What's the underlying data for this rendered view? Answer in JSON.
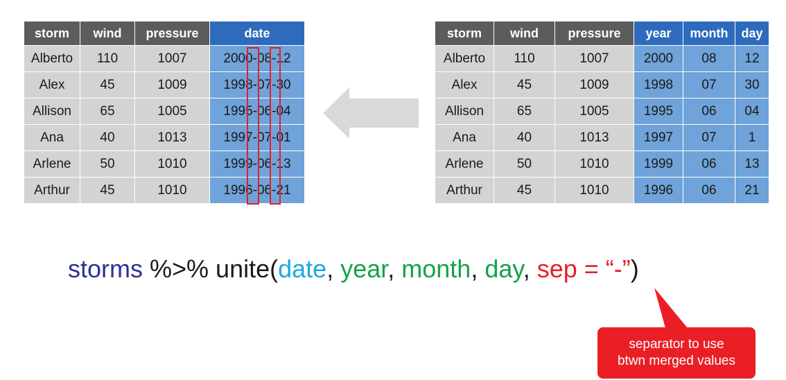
{
  "left_table": {
    "headers": [
      "storm",
      "wind",
      "pressure",
      "date"
    ],
    "rows": [
      [
        "Alberto",
        "110",
        "1007",
        "2000-08-12"
      ],
      [
        "Alex",
        "45",
        "1009",
        "1998-07-30"
      ],
      [
        "Allison",
        "65",
        "1005",
        "1995-06-04"
      ],
      [
        "Ana",
        "40",
        "1013",
        "1997-07-01"
      ],
      [
        "Arlene",
        "50",
        "1010",
        "1999-06-13"
      ],
      [
        "Arthur",
        "45",
        "1010",
        "1996-06-21"
      ]
    ]
  },
  "right_table": {
    "headers": [
      "storm",
      "wind",
      "pressure",
      "year",
      "month",
      "day"
    ],
    "rows": [
      [
        "Alberto",
        "110",
        "1007",
        "2000",
        "08",
        "12"
      ],
      [
        "Alex",
        "45",
        "1009",
        "1998",
        "07",
        "30"
      ],
      [
        "Allison",
        "65",
        "1005",
        "1995",
        "06",
        "04"
      ],
      [
        "Ana",
        "40",
        "1013",
        "1997",
        "07",
        "1"
      ],
      [
        "Arlene",
        "50",
        "1010",
        "1999",
        "06",
        "13"
      ],
      [
        "Arthur",
        "45",
        "1010",
        "1996",
        "06",
        "21"
      ]
    ]
  },
  "code": {
    "obj": "storms",
    "pipe": " %>% unite(",
    "arg_date": "date",
    "sep1": ", ",
    "arg_year": "year",
    "sep2": ", ",
    "arg_month": "month",
    "sep3": ", ",
    "arg_day": "day",
    "sep4": ", ",
    "sep_arg": "sep = “-”",
    "close": ")"
  },
  "callout": {
    "line1": "separator to use",
    "line2": "btwn merged values"
  },
  "colors": {
    "header_gray": "#5b5c5e",
    "header_blue": "#2e6bbd",
    "cell_gray": "#d3d3d3",
    "cell_blue": "#6fa3d9",
    "highlight_red": "#e0202a",
    "callout_red": "#ea1f26",
    "arrow_gray": "#d9d9d9"
  },
  "icons": {
    "arrow": "left-arrow-icon"
  }
}
